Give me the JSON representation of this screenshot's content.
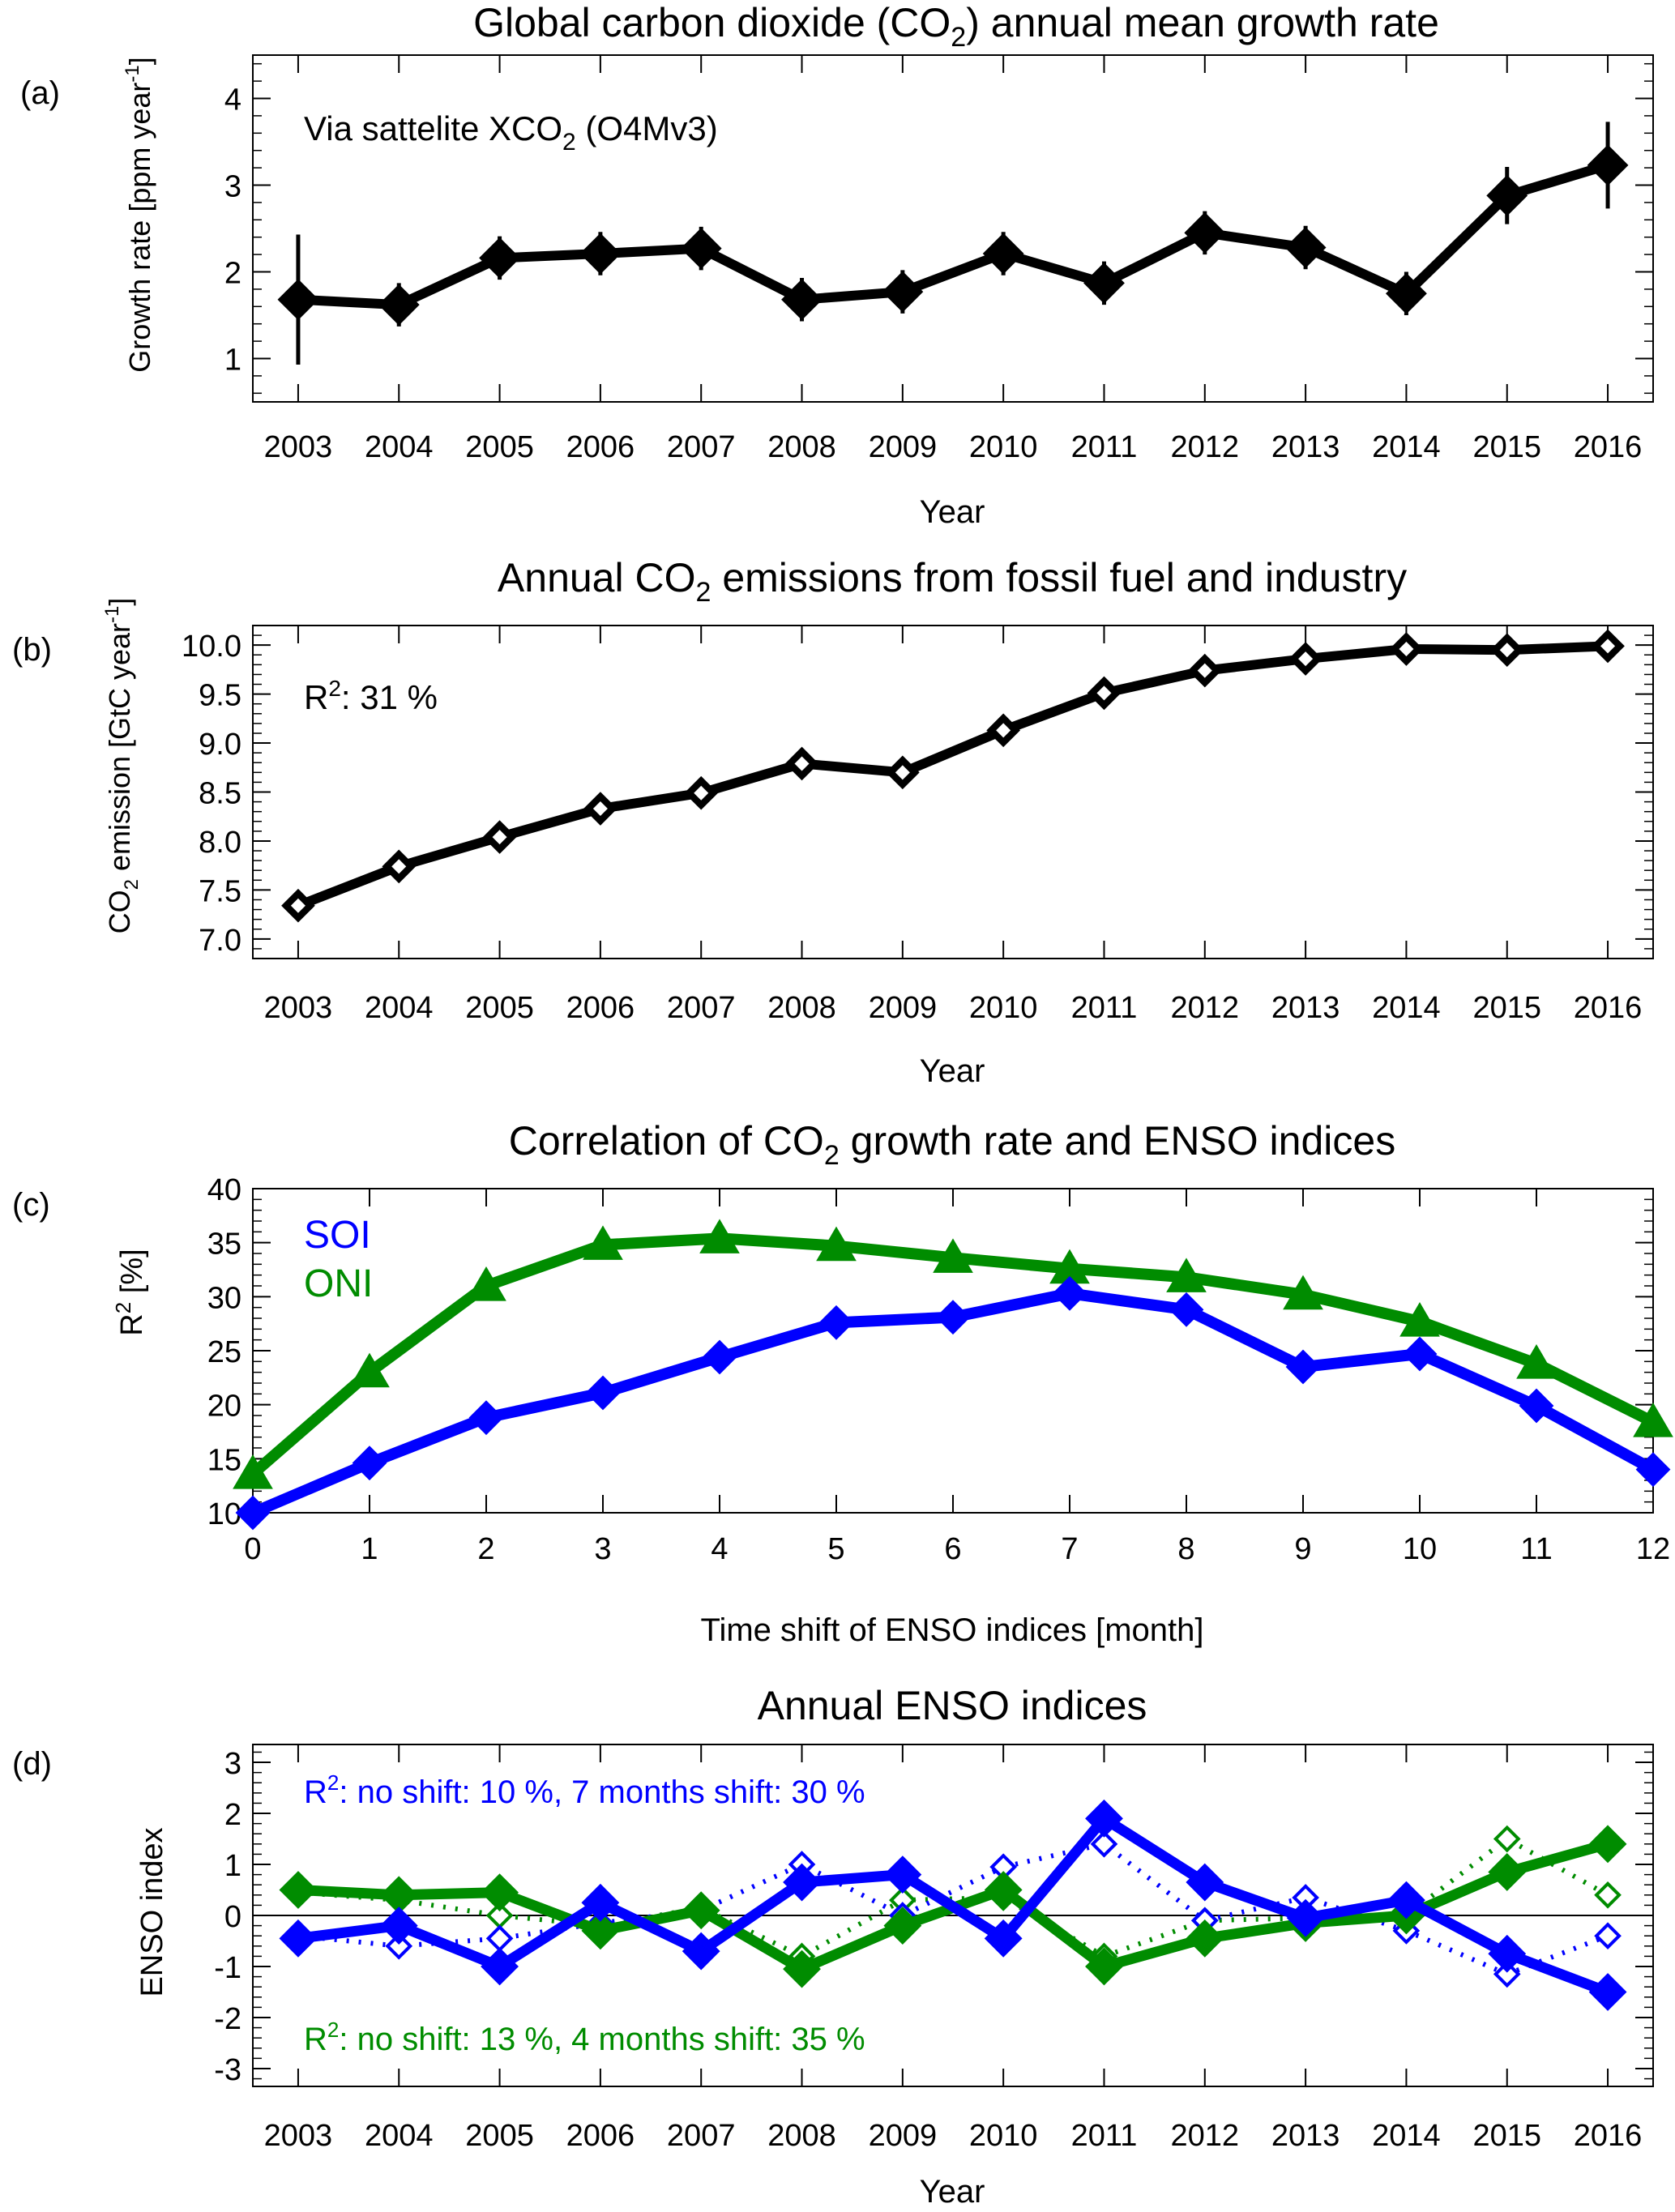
{
  "panels": {
    "a": {
      "label": "(a)",
      "title_pre": "Global carbon dioxide (CO",
      "title_sub": "2",
      "title_post": ") annual mean growth rate",
      "ylabel_pre": "Growth rate  [ppm year",
      "ylabel_sup": "-1",
      "ylabel_post": "]",
      "annotation_pre": "Via sattelite XCO",
      "annotation_sub": "2",
      "annotation_post": " (O4Mv3)",
      "xlabel": "Year"
    },
    "b": {
      "label": "(b)",
      "title_pre": "Annual CO",
      "title_sub": "2",
      "title_post": " emissions from fossil fuel and industry",
      "ylabel_pre": "CO",
      "ylabel_sub": "2",
      "ylabel_mid": " emission [GtC year",
      "ylabel_sup": "-1",
      "ylabel_post": "]",
      "annotation_pre": "R",
      "annotation_sup": "2",
      "annotation_post": ": 31 %",
      "xlabel": "Year"
    },
    "c": {
      "label": "(c)",
      "title_pre": "Correlation of CO",
      "title_sub": "2",
      "title_post": " growth rate and ENSO indices",
      "ylabel_pre": "R",
      "ylabel_sup": "2",
      "ylabel_post": " [%]",
      "xlabel": "Time shift of ENSO indices [month]",
      "legend_soi": "SOI",
      "legend_oni": "ONI"
    },
    "d": {
      "label": "(d)",
      "title": "Annual ENSO indices",
      "ylabel": "ENSO index",
      "xlabel": "Year",
      "ann_soi_pre": "R",
      "ann_soi_sup": "2",
      "ann_soi_post": ": no shift: 10 %, 7 months shift: 30 %",
      "ann_oni_pre": "R",
      "ann_oni_sup": "2",
      "ann_oni_post": ": no shift: 13 %, 4 months shift: 35 %"
    }
  },
  "colors": {
    "soi": "#0000ff",
    "oni": "#008c00",
    "black": "#000000"
  },
  "chart_data": [
    {
      "id": "a",
      "type": "line",
      "x": [
        2003,
        2004,
        2005,
        2006,
        2007,
        2008,
        2009,
        2010,
        2011,
        2012,
        2013,
        2014,
        2015,
        2016
      ],
      "xlim": [
        2002.55,
        2016.45
      ],
      "ylim": [
        0.5,
        4.5
      ],
      "yticks": [
        1,
        2,
        3,
        4
      ],
      "series": [
        {
          "values": [
            1.68,
            1.62,
            2.16,
            2.21,
            2.27,
            1.68,
            1.77,
            2.21,
            1.87,
            2.45,
            2.28,
            1.75,
            2.88,
            3.23
          ],
          "errors": [
            0.75,
            0.25,
            0.25,
            0.25,
            0.25,
            0.25,
            0.25,
            0.25,
            0.25,
            0.25,
            0.25,
            0.25,
            0.33,
            0.5
          ]
        }
      ]
    },
    {
      "id": "b",
      "type": "line",
      "x": [
        2003,
        2004,
        2005,
        2006,
        2007,
        2008,
        2009,
        2010,
        2011,
        2012,
        2013,
        2014,
        2015,
        2016
      ],
      "xlim": [
        2002.55,
        2016.45
      ],
      "ylim": [
        6.8,
        10.2
      ],
      "yticks": [
        7.0,
        7.5,
        8.0,
        8.5,
        9.0,
        9.5,
        10.0
      ],
      "series": [
        {
          "values": [
            7.34,
            7.74,
            8.04,
            8.33,
            8.49,
            8.79,
            8.7,
            9.13,
            9.51,
            9.74,
            9.86,
            9.96,
            9.95,
            9.99
          ]
        }
      ]
    },
    {
      "id": "c",
      "type": "line",
      "x": [
        0,
        1,
        2,
        3,
        4,
        5,
        6,
        7,
        8,
        9,
        10,
        11,
        12
      ],
      "xlim": [
        0,
        12
      ],
      "ylim": [
        10,
        40
      ],
      "yticks": [
        10,
        15,
        20,
        25,
        30,
        35,
        40
      ],
      "series": [
        {
          "name": "SOI",
          "values": [
            10.0,
            14.6,
            18.8,
            21.1,
            24.4,
            27.6,
            28.1,
            30.3,
            28.8,
            23.5,
            24.7,
            19.9,
            14.0
          ]
        },
        {
          "name": "ONI",
          "values": [
            13.6,
            23.0,
            31.0,
            34.8,
            35.4,
            34.7,
            33.6,
            32.6,
            31.8,
            30.2,
            27.7,
            23.8,
            18.4
          ]
        }
      ]
    },
    {
      "id": "d",
      "type": "line",
      "x": [
        2003,
        2004,
        2005,
        2006,
        2007,
        2008,
        2009,
        2010,
        2011,
        2012,
        2013,
        2014,
        2015,
        2016
      ],
      "xlim": [
        2002.55,
        2016.45
      ],
      "ylim": [
        -3.35,
        3.35
      ],
      "yticks": [
        -3,
        -2,
        -1,
        0,
        1,
        2,
        3
      ],
      "series": [
        {
          "name": "SOI",
          "style": "solid",
          "values": [
            -0.45,
            -0.2,
            -1.0,
            0.25,
            -0.7,
            0.65,
            0.8,
            -0.45,
            1.9,
            0.65,
            -0.05,
            0.3,
            -0.75,
            -1.5
          ]
        },
        {
          "name": "SOI",
          "style": "dotted",
          "values": [
            -0.4,
            -0.6,
            -0.45,
            -0.15,
            0.1,
            1.0,
            0.0,
            0.95,
            1.4,
            -0.1,
            0.35,
            -0.3,
            -1.15,
            -0.4
          ]
        },
        {
          "name": "ONI",
          "style": "solid",
          "values": [
            0.5,
            0.4,
            0.45,
            -0.3,
            0.1,
            -1.05,
            -0.2,
            0.5,
            -1.0,
            -0.45,
            -0.15,
            0.0,
            0.85,
            1.4
          ]
        },
        {
          "name": "ONI",
          "style": "dotted",
          "values": [
            0.45,
            0.3,
            0.0,
            -0.2,
            0.15,
            -0.8,
            0.3,
            0.35,
            -0.8,
            -0.1,
            -0.05,
            0.0,
            1.5,
            0.4
          ]
        }
      ]
    }
  ]
}
